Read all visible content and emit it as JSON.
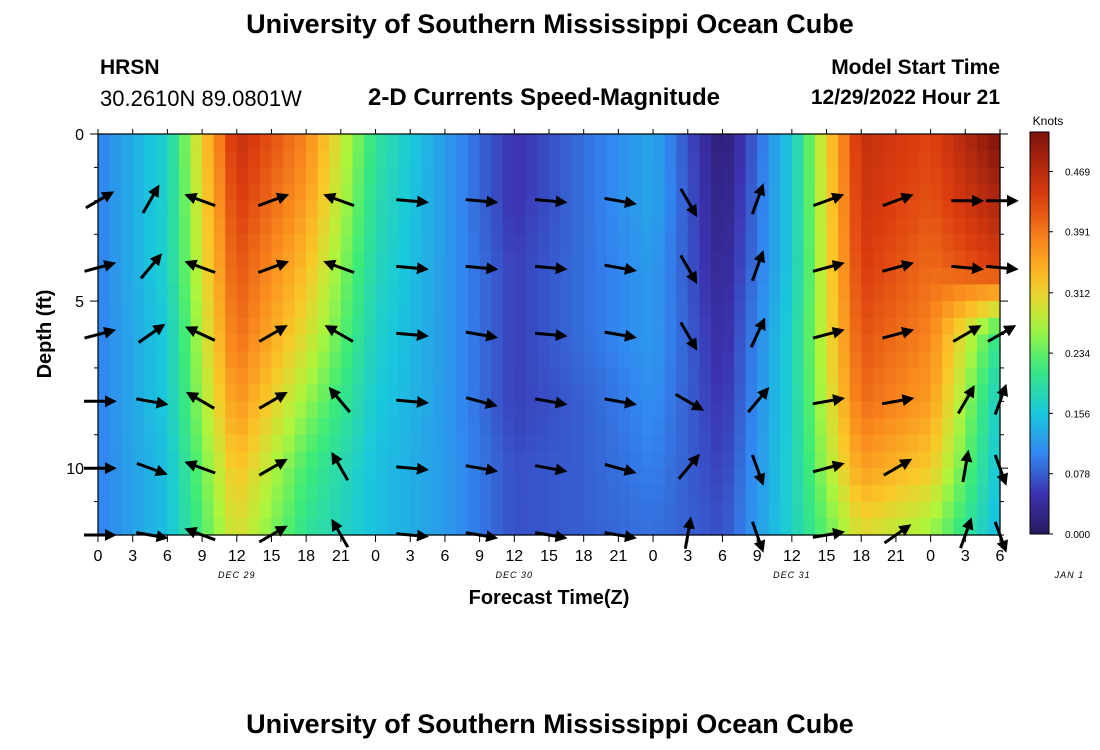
{
  "header": {
    "title": "University of Southern Mississippi Ocean Cube",
    "station": "HRSN",
    "coords": "30.2610N  89.0801W",
    "subtitle": "2-D Currents Speed-Magnitude",
    "start_label": "Model Start Time",
    "start_value": "12/29/2022 Hour 21"
  },
  "footer": {
    "title": "University of Southern Mississippi Ocean Cube"
  },
  "chart_data": {
    "type": "heatmap",
    "title": "2-D Currents Speed-Magnitude",
    "xlabel": "Forecast Time(Z)",
    "ylabel": "Depth (ft)",
    "x_tick_labels": [
      "0",
      "3",
      "6",
      "9",
      "12",
      "15",
      "18",
      "21",
      "0",
      "3",
      "6",
      "9",
      "12",
      "15",
      "18",
      "21",
      "0",
      "3",
      "6",
      "9",
      "12",
      "15",
      "18",
      "21",
      "0",
      "3",
      "6"
    ],
    "date_labels": [
      {
        "label": "DEC 29",
        "hour": 12
      },
      {
        "label": "DEC 30",
        "hour": 36
      },
      {
        "label": "DEC 31",
        "hour": 60
      },
      {
        "label": "JAN 1",
        "hour": 84
      }
    ],
    "xlim": [
      0,
      78
    ],
    "ylim": [
      0,
      12
    ],
    "y_ticks": [
      0,
      5,
      10
    ],
    "colorbar": {
      "title": "Knots",
      "range": [
        0,
        0.52
      ],
      "tick_labels": [
        "0.000",
        "0.078",
        "0.156",
        "0.234",
        "0.312",
        "0.391",
        "0.469"
      ],
      "tick_values": [
        0,
        0.078,
        0.156,
        0.234,
        0.312,
        0.391,
        0.469
      ]
    },
    "time_hours": [
      0,
      6,
      12,
      18,
      24,
      30,
      36,
      42,
      48,
      54,
      60,
      66,
      72,
      78
    ],
    "depth_ft": [
      0,
      2,
      4,
      6,
      8,
      10,
      12
    ],
    "speed_knots": [
      [
        0.1,
        0.17,
        0.46,
        0.38,
        0.2,
        0.12,
        0.05,
        0.09,
        0.13,
        0.01,
        0.16,
        0.46,
        0.43,
        0.52
      ],
      [
        0.1,
        0.17,
        0.44,
        0.36,
        0.19,
        0.12,
        0.05,
        0.09,
        0.13,
        0.02,
        0.16,
        0.45,
        0.42,
        0.48
      ],
      [
        0.1,
        0.17,
        0.42,
        0.33,
        0.18,
        0.12,
        0.06,
        0.09,
        0.12,
        0.03,
        0.16,
        0.44,
        0.4,
        0.44
      ],
      [
        0.1,
        0.16,
        0.4,
        0.3,
        0.17,
        0.12,
        0.06,
        0.09,
        0.12,
        0.04,
        0.17,
        0.42,
        0.38,
        0.2
      ],
      [
        0.1,
        0.16,
        0.37,
        0.26,
        0.16,
        0.12,
        0.06,
        0.08,
        0.11,
        0.05,
        0.17,
        0.4,
        0.36,
        0.16
      ],
      [
        0.1,
        0.15,
        0.33,
        0.22,
        0.15,
        0.12,
        0.07,
        0.08,
        0.1,
        0.06,
        0.17,
        0.36,
        0.32,
        0.15
      ],
      [
        0.1,
        0.15,
        0.3,
        0.2,
        0.15,
        0.12,
        0.07,
        0.08,
        0.09,
        0.07,
        0.17,
        0.3,
        0.26,
        0.14
      ]
    ],
    "vector_times_h": [
      0,
      4.5,
      9,
      15,
      21,
      27,
      33,
      39,
      45,
      51,
      57,
      63,
      69,
      75,
      78
    ],
    "vector_depths_ft": [
      2,
      4,
      6,
      8,
      10,
      12
    ],
    "vector_directions_deg": [
      [
        60,
        30,
        290,
        70,
        290,
        95,
        95,
        95,
        100,
        150,
        20,
        70,
        70,
        90,
        90
      ],
      [
        75,
        40,
        290,
        70,
        290,
        95,
        95,
        95,
        100,
        150,
        20,
        75,
        75,
        95,
        95
      ],
      [
        75,
        55,
        295,
        60,
        300,
        95,
        100,
        95,
        100,
        150,
        25,
        75,
        75,
        60,
        60
      ],
      [
        90,
        100,
        300,
        60,
        320,
        95,
        105,
        100,
        100,
        120,
        40,
        80,
        80,
        30,
        20
      ],
      [
        90,
        110,
        290,
        60,
        330,
        95,
        100,
        100,
        105,
        40,
        160,
        75,
        60,
        10,
        160
      ],
      [
        90,
        100,
        290,
        60,
        330,
        95,
        100,
        100,
        100,
        10,
        160,
        80,
        55,
        20,
        160
      ]
    ]
  }
}
